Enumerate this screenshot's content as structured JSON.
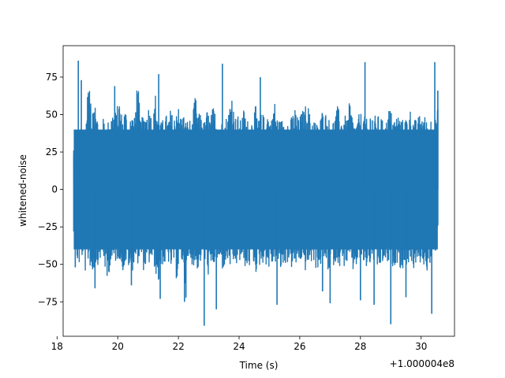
{
  "chart_data": {
    "type": "line",
    "title": "",
    "xlabel": "Time (s)",
    "ylabel": "whitened-noise",
    "x_offset_label": "+1.000004e8",
    "xlim": [
      18.2,
      31.1
    ],
    "ylim": [
      -98,
      96
    ],
    "x_ticks": [
      18,
      20,
      22,
      24,
      26,
      28,
      30
    ],
    "x_tick_labels": [
      "18",
      "20",
      "22",
      "24",
      "26",
      "28",
      "30"
    ],
    "y_ticks": [
      -75,
      -50,
      -25,
      0,
      25,
      50,
      75
    ],
    "y_tick_labels": [
      "−75",
      "−50",
      "−25",
      "0",
      "25",
      "50",
      "75"
    ],
    "grid": false,
    "series": [
      {
        "color": "#1f77b4",
        "x_start": 18.55,
        "x_end": 30.55,
        "upper_envelope": [
          26,
          42,
          38,
          44,
          46,
          86,
          42,
          74,
          44,
          46,
          48,
          44,
          50,
          54,
          52,
          62,
          48,
          56,
          44,
          52,
          48,
          76,
          46,
          50,
          54,
          58,
          44,
          66,
          50,
          44,
          52,
          48,
          54,
          46,
          62,
          50,
          52,
          46,
          48,
          44,
          64,
          50,
          52,
          44,
          54,
          48,
          56,
          50,
          44,
          46,
          48,
          52,
          70,
          48,
          50,
          46,
          54,
          48,
          44,
          50,
          56,
          46,
          52,
          48,
          54,
          44,
          62,
          50,
          46,
          48,
          52,
          44,
          50,
          56,
          46,
          52,
          54,
          60,
          48,
          50,
          44,
          46,
          54,
          52,
          48,
          44,
          50,
          56,
          48,
          52,
          46,
          60,
          48,
          44,
          50,
          52,
          48,
          46,
          54,
          50,
          48,
          52,
          44,
          46,
          56,
          50,
          48,
          52,
          46,
          48,
          50,
          54,
          48,
          46,
          50,
          52,
          48,
          44,
          50,
          46,
          54
        ],
        "lower_envelope": [
          -28,
          -48,
          -52,
          -44,
          -58,
          -46,
          -60,
          -52,
          -50,
          -46,
          -48,
          -66,
          -50,
          -52,
          -48,
          -46,
          -56,
          -50,
          -52,
          -58,
          -48,
          -50,
          -46,
          -54,
          -52,
          -50,
          -48,
          -56,
          -64,
          -50,
          -52,
          -48,
          -54,
          -50,
          -62,
          -46,
          -52,
          -72,
          -48,
          -50,
          -52,
          -54,
          -48,
          -50,
          -56,
          -60,
          -52,
          -48,
          -50,
          -54,
          -52,
          -48,
          -56,
          -50,
          -52,
          -48,
          -50,
          -54,
          -52,
          -48,
          -56,
          -52,
          -50,
          -48,
          -54,
          -52,
          -50,
          -48,
          -56,
          -52,
          -50,
          -48,
          -54,
          -52,
          -50,
          -48,
          -56,
          -52,
          -50,
          -48,
          -54,
          -52,
          -50,
          -48,
          -56,
          -52,
          -50,
          -48,
          -54,
          -52,
          -50,
          -48,
          -56,
          -52,
          -50,
          -48,
          -54,
          -52,
          -50,
          -48,
          -56,
          -52,
          -50,
          -48,
          -54,
          -52,
          -50,
          -48,
          -56,
          -52,
          -50,
          -48,
          -54,
          -52,
          -50,
          -48,
          -56,
          -52,
          -50,
          -48,
          -24
        ],
        "spikes": [
          {
            "x": 18.7,
            "y": 86
          },
          {
            "x": 18.8,
            "y": 73
          },
          {
            "x": 19.9,
            "y": 69
          },
          {
            "x": 21.35,
            "y": 77
          },
          {
            "x": 23.45,
            "y": 84
          },
          {
            "x": 24.7,
            "y": 75
          },
          {
            "x": 28.15,
            "y": 85
          },
          {
            "x": 30.45,
            "y": 85
          },
          {
            "x": 30.55,
            "y": 66
          },
          {
            "x": 18.6,
            "y": -52
          },
          {
            "x": 19.25,
            "y": -66
          },
          {
            "x": 20.45,
            "y": -64
          },
          {
            "x": 21.4,
            "y": -73
          },
          {
            "x": 22.2,
            "y": -75
          },
          {
            "x": 22.85,
            "y": -91
          },
          {
            "x": 23.25,
            "y": -80
          },
          {
            "x": 25.25,
            "y": -77
          },
          {
            "x": 26.75,
            "y": -68
          },
          {
            "x": 27.0,
            "y": -76
          },
          {
            "x": 28.0,
            "y": -74
          },
          {
            "x": 28.45,
            "y": -77
          },
          {
            "x": 29.0,
            "y": -90
          },
          {
            "x": 29.5,
            "y": -72
          },
          {
            "x": 30.35,
            "y": -83
          }
        ]
      }
    ]
  }
}
